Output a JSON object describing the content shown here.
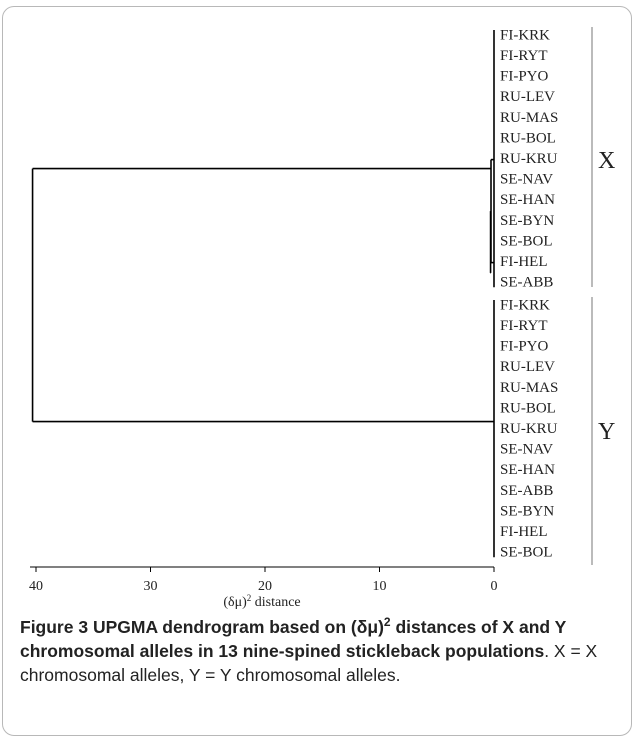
{
  "figure": {
    "leaves": {
      "x_group": [
        "FI-KRK",
        "FI-RYT",
        "FI-PYO",
        "RU-LEV",
        "RU-MAS",
        "RU-BOL",
        "RU-KRU",
        "SE-NAV",
        "SE-HAN",
        "SE-BYN",
        "SE-BOL",
        "FI-HEL",
        "SE-ABB"
      ],
      "y_group": [
        "FI-KRK",
        "FI-RYT",
        "FI-PYO",
        "RU-LEV",
        "RU-MAS",
        "RU-BOL",
        "RU-KRU",
        "SE-NAV",
        "SE-HAN",
        "SE-ABB",
        "SE-BYN",
        "FI-HEL",
        "SE-BOL"
      ]
    },
    "group_labels": {
      "x": "X",
      "y": "Y"
    },
    "axis": {
      "ticks": [
        "40",
        "30",
        "20",
        "10",
        "0"
      ],
      "tick_values": [
        40,
        30,
        20,
        10,
        0
      ],
      "label_main": "(δμ)",
      "label_sup": "2",
      "label_rest": " distance",
      "range": [
        40,
        0
      ]
    },
    "merges": {
      "root_distance": 40.3,
      "x_group_join_distance": 0.3
    }
  },
  "caption": {
    "number": "Figure 3",
    "title_a": " UPGMA dendrogram based on (δμ)",
    "title_sup": "2",
    "title_b": " distances of X and Y chromosomal alleles in 13 nine-spined stickleback populations",
    "body": ". X = X chromosomal alleles, Y = Y chromosomal alleles."
  }
}
